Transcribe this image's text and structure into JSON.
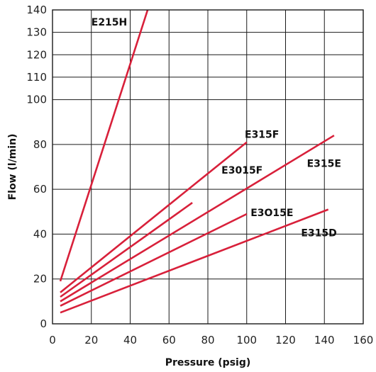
{
  "chart_data": {
    "type": "line",
    "title": "",
    "xlabel": "Pressure (psig)",
    "ylabel": "Flow (l/min)",
    "xlim": [
      0,
      160
    ],
    "ylim": [
      0,
      140
    ],
    "x_ticks": [
      0,
      20,
      40,
      60,
      80,
      100,
      120,
      140,
      160
    ],
    "y_ticks": [
      0,
      20,
      40,
      60,
      80,
      100,
      110,
      120,
      130,
      140
    ],
    "y_tick_labels": [
      "0",
      "20",
      "40",
      "60",
      "80",
      "100",
      "110",
      "120",
      "130",
      "140"
    ],
    "grid": true,
    "line_color": "#d8203a",
    "series": [
      {
        "name": "E215H",
        "x": [
          4,
          49
        ],
        "y": [
          19,
          140
        ]
      },
      {
        "name": "E315F",
        "x": [
          4,
          100
        ],
        "y": [
          14,
          81
        ]
      },
      {
        "name": "",
        "x": [
          4,
          72
        ],
        "y": [
          12,
          54
        ]
      },
      {
        "name": "E315E",
        "x": [
          4,
          145
        ],
        "y": [
          10,
          84
        ]
      },
      {
        "name": "E3O15E",
        "x": [
          4,
          100
        ],
        "y": [
          8,
          49
        ]
      },
      {
        "name": "E315D",
        "x": [
          4,
          142
        ],
        "y": [
          5,
          51
        ]
      }
    ],
    "annotations": [
      {
        "text": "E215H",
        "x": 20,
        "y": 133
      },
      {
        "text": "E315F",
        "x": 99,
        "y": 83
      },
      {
        "text": "E3015F",
        "x": 87,
        "y": 67
      },
      {
        "text": "E315E",
        "x": 131,
        "y": 70
      },
      {
        "text": "E3O15E",
        "x": 102,
        "y": 48
      },
      {
        "text": "E315D",
        "x": 128,
        "y": 39
      }
    ]
  }
}
